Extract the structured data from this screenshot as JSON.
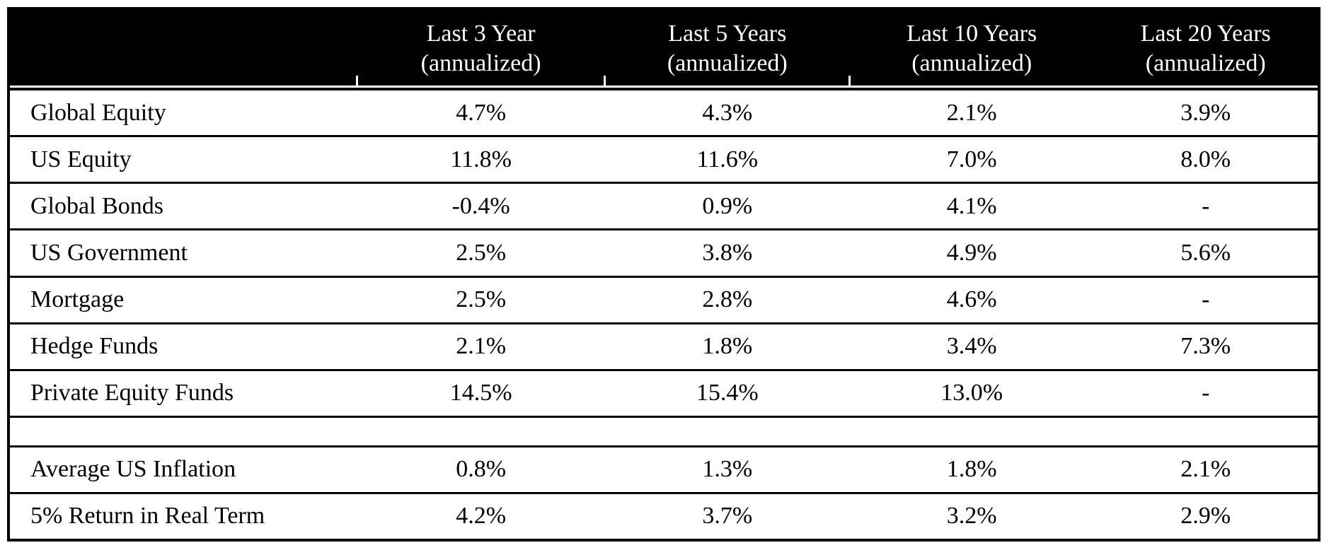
{
  "table": {
    "header": {
      "corner": "",
      "columns": [
        {
          "line1": "Last 3 Year",
          "line2": "(annualized)"
        },
        {
          "line1": "Last 5 Years",
          "line2": "(annualized)"
        },
        {
          "line1": "Last 10 Years",
          "line2": "(annualized)"
        },
        {
          "line1": "Last 20 Years",
          "line2": "(annualized)"
        }
      ]
    },
    "rows": [
      {
        "label": "Global Equity",
        "values": [
          "4.7%",
          "4.3%",
          "2.1%",
          "3.9%"
        ],
        "spacer": false
      },
      {
        "label": "US Equity",
        "values": [
          "11.8%",
          "11.6%",
          "7.0%",
          "8.0%"
        ],
        "spacer": false
      },
      {
        "label": "Global Bonds",
        "values": [
          "-0.4%",
          "0.9%",
          "4.1%",
          "-"
        ],
        "spacer": false
      },
      {
        "label": "US Government",
        "values": [
          "2.5%",
          "3.8%",
          "4.9%",
          "5.6%"
        ],
        "spacer": false
      },
      {
        "label": "Mortgage",
        "values": [
          "2.5%",
          "2.8%",
          "4.6%",
          "-"
        ],
        "spacer": false
      },
      {
        "label": "Hedge Funds",
        "values": [
          "2.1%",
          "1.8%",
          "3.4%",
          "7.3%"
        ],
        "spacer": false
      },
      {
        "label": "Private Equity Funds",
        "values": [
          "14.5%",
          "15.4%",
          "13.0%",
          "-"
        ],
        "spacer": false
      },
      {
        "label": "",
        "values": [
          "",
          "",
          "",
          ""
        ],
        "spacer": true
      },
      {
        "label": "Average US Inflation",
        "values": [
          "0.8%",
          "1.3%",
          "1.8%",
          "2.1%"
        ],
        "spacer": false
      },
      {
        "label": "5% Return in Real Term",
        "values": [
          "4.2%",
          "3.7%",
          "3.2%",
          "2.9%"
        ],
        "spacer": false
      }
    ]
  },
  "colors": {
    "header_bg": "#000000",
    "header_text": "#ffffff",
    "border": "#000000",
    "body_bg": "#ffffff",
    "body_text": "#000000"
  },
  "chart_data": {
    "type": "table",
    "columns": [
      "",
      "Last 3 Year (annualized)",
      "Last 5 Years (annualized)",
      "Last 10 Years (annualized)",
      "Last 20 Years (annualized)"
    ],
    "rows": [
      [
        "Global Equity",
        "4.7%",
        "4.3%",
        "2.1%",
        "3.9%"
      ],
      [
        "US Equity",
        "11.8%",
        "11.6%",
        "7.0%",
        "8.0%"
      ],
      [
        "Global Bonds",
        "-0.4%",
        "0.9%",
        "4.1%",
        "-"
      ],
      [
        "US Government",
        "2.5%",
        "3.8%",
        "4.9%",
        "5.6%"
      ],
      [
        "Mortgage",
        "2.5%",
        "2.8%",
        "4.6%",
        "-"
      ],
      [
        "Hedge Funds",
        "2.1%",
        "1.8%",
        "3.4%",
        "7.3%"
      ],
      [
        "Private Equity Funds",
        "14.5%",
        "15.4%",
        "13.0%",
        "-"
      ],
      [
        "Average US Inflation",
        "0.8%",
        "1.3%",
        "1.8%",
        "2.1%"
      ],
      [
        "5% Return in Real Term",
        "4.2%",
        "3.7%",
        "3.2%",
        "2.9%"
      ]
    ],
    "values_numeric_pct": {
      "Global Equity": [
        4.7,
        4.3,
        2.1,
        3.9
      ],
      "US Equity": [
        11.8,
        11.6,
        7.0,
        8.0
      ],
      "Global Bonds": [
        -0.4,
        0.9,
        4.1,
        null
      ],
      "US Government": [
        2.5,
        3.8,
        4.9,
        5.6
      ],
      "Mortgage": [
        2.5,
        2.8,
        4.6,
        null
      ],
      "Hedge Funds": [
        2.1,
        1.8,
        3.4,
        7.3
      ],
      "Private Equity Funds": [
        14.5,
        15.4,
        13.0,
        null
      ],
      "Average US Inflation": [
        0.8,
        1.3,
        1.8,
        2.1
      ],
      "5% Return in Real Term": [
        4.2,
        3.7,
        3.2,
        2.9
      ]
    }
  }
}
